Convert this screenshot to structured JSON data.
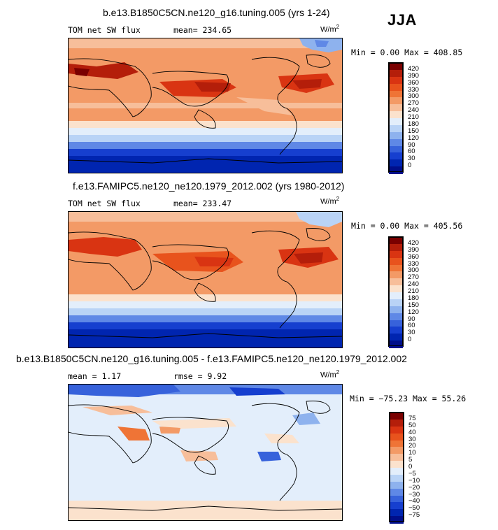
{
  "season": "JJA",
  "panels": [
    {
      "title": "b.e13.B1850C5CN.ne120_g16.tuning.005 (yrs 1-24)",
      "field_label": "TOM net SW flux",
      "stat_text": "mean=  234.65",
      "unit": "W/m",
      "unit_exp": "2",
      "minmax": "Min =   0.00 Max = 408.85",
      "colorbar": {
        "labels": [
          "420",
          "390",
          "360",
          "330",
          "300",
          "270",
          "240",
          "210",
          "180",
          "150",
          "120",
          "90",
          "60",
          "30",
          "0"
        ],
        "colors": [
          "#7a0000",
          "#b41e0a",
          "#d93412",
          "#e8531d",
          "#ef7436",
          "#f39a66",
          "#f7be9a",
          "#fbe2cd",
          "#e3eefb",
          "#b9d3f6",
          "#8eb2ee",
          "#5f88e6",
          "#3762db",
          "#163fcf",
          "#0025b0",
          "#000e8a"
        ]
      }
    },
    {
      "title": "f.e13.FAMIPC5.ne120_ne120.1979_2012.002 (yrs 1980-2012)",
      "field_label": "TOM net SW flux",
      "stat_text": "mean=  233.47",
      "unit": "W/m",
      "unit_exp": "2",
      "minmax": "Min =   0.00 Max = 405.56",
      "colorbar": {
        "labels": [
          "420",
          "390",
          "360",
          "330",
          "300",
          "270",
          "240",
          "210",
          "180",
          "150",
          "120",
          "90",
          "60",
          "30",
          "0"
        ],
        "colors": [
          "#7a0000",
          "#b41e0a",
          "#d93412",
          "#e8531d",
          "#ef7436",
          "#f39a66",
          "#f7be9a",
          "#fbe2cd",
          "#e3eefb",
          "#b9d3f6",
          "#8eb2ee",
          "#5f88e6",
          "#3762db",
          "#163fcf",
          "#0025b0",
          "#000e8a"
        ]
      }
    },
    {
      "title": "b.e13.B1850C5CN.ne120_g16.tuning.005 - f.e13.FAMIPC5.ne120_ne120.1979_2012.002",
      "field_label": "mean =   1.17",
      "stat_text": "rmse =   9.92",
      "unit": "W/m",
      "unit_exp": "2",
      "minmax": "Min = −75.23 Max =  55.26",
      "colorbar": {
        "labels": [
          "75",
          "50",
          "40",
          "30",
          "20",
          "10",
          "5",
          "0",
          "−5",
          "−10",
          "−20",
          "−30",
          "−40",
          "−50",
          "−75"
        ],
        "colors": [
          "#7a0000",
          "#b41e0a",
          "#d93412",
          "#e8531d",
          "#ef7436",
          "#f39a66",
          "#f7be9a",
          "#fbe2cd",
          "#e3eefb",
          "#b9d3f6",
          "#8eb2ee",
          "#5f88e6",
          "#3762db",
          "#163fcf",
          "#0025b0",
          "#000e8a"
        ]
      }
    }
  ]
}
